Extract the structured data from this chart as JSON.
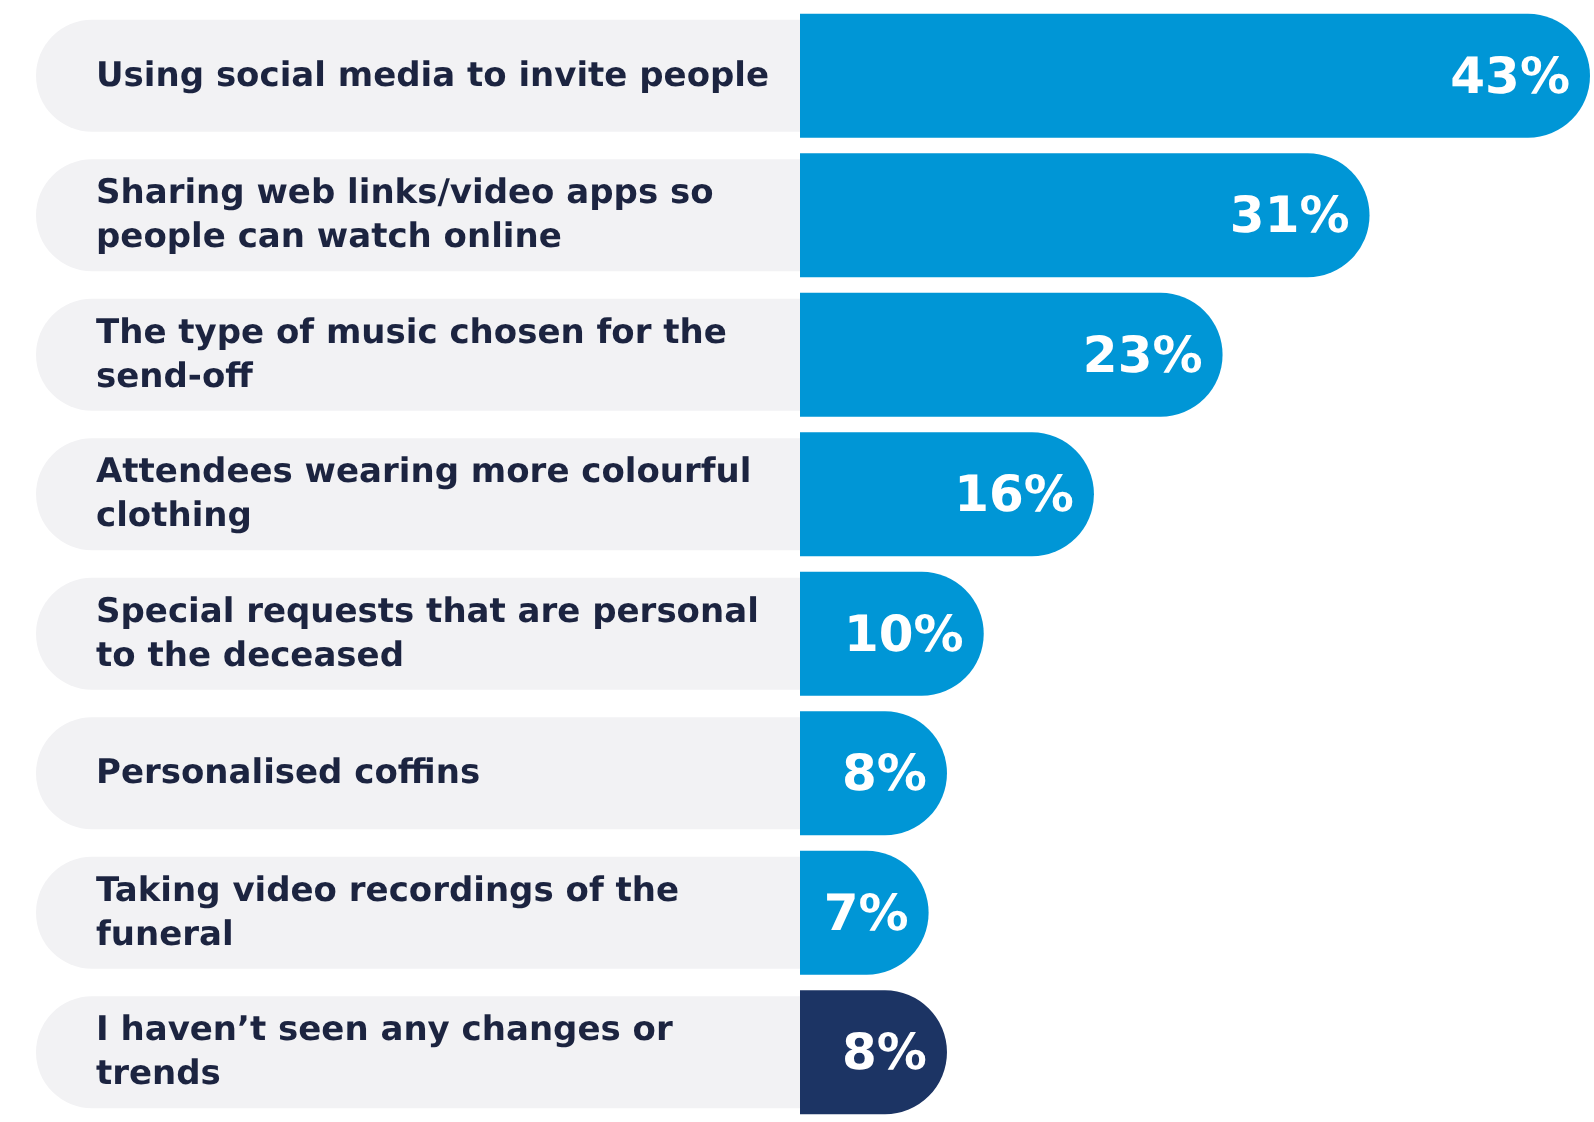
{
  "chart_data": {
    "type": "bar",
    "orientation": "horizontal",
    "categories": [
      "Using social media to invite people",
      "Sharing web links/video apps so people can watch online",
      "The type of music chosen for the send-off",
      "Attendees wearing more colourful clothing",
      "Special requests that are personal to the deceased",
      "Personalised coffins",
      "Taking video recordings of the funeral",
      "I haven’t seen any changes or trends"
    ],
    "values": [
      43,
      31,
      23,
      16,
      10,
      8,
      7,
      8
    ],
    "value_labels": [
      "43%",
      "31%",
      "23%",
      "16%",
      "10%",
      "8%",
      "7%",
      "8%"
    ],
    "colors": [
      "#0096d6",
      "#0096d6",
      "#0096d6",
      "#0096d6",
      "#0096d6",
      "#0096d6",
      "#0096d6",
      "#1c3464"
    ]
  }
}
